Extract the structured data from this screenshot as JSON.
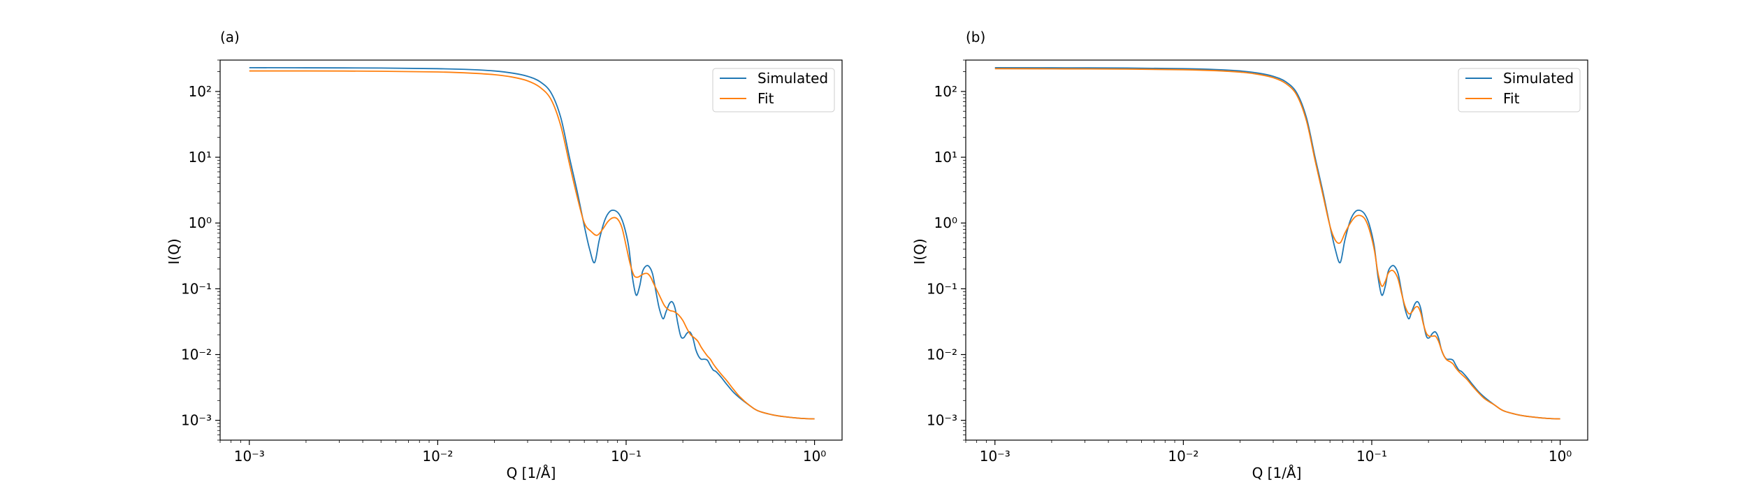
{
  "figure": {
    "panels": [
      {
        "label": "(a)",
        "xlabel": "Q [1/Å]",
        "ylabel": "I(Q)"
      },
      {
        "label": "(b)",
        "xlabel": "Q [1/Å]",
        "ylabel": "I(Q)"
      }
    ]
  },
  "chart_data": [
    {
      "type": "line",
      "panel": "(a)",
      "xlabel": "Q [1/Å]",
      "ylabel": "I(Q)",
      "xscale": "log",
      "yscale": "log",
      "xlim": [
        0.0007,
        1.4
      ],
      "ylim": [
        0.0005,
        300
      ],
      "xticks": [
        0.001,
        0.01,
        0.1,
        1
      ],
      "xtick_labels": [
        "10⁻³",
        "10⁻²",
        "10⁻¹",
        "10⁰"
      ],
      "yticks": [
        0.001,
        0.01,
        0.1,
        1,
        10,
        100
      ],
      "ytick_labels": [
        "10⁻³",
        "10⁻²",
        "10⁻¹",
        "10⁰",
        "10¹",
        "10²"
      ],
      "grid": false,
      "legend_position": "top-right",
      "series": [
        {
          "name": "Simulated",
          "color": "#1f77b4",
          "x": [
            0.001,
            0.002,
            0.005,
            0.01,
            0.015,
            0.02,
            0.025,
            0.03,
            0.035,
            0.04,
            0.045,
            0.05,
            0.055,
            0.06,
            0.064,
            0.068,
            0.072,
            0.077,
            0.082,
            0.087,
            0.092,
            0.097,
            0.103,
            0.108,
            0.113,
            0.118,
            0.122,
            0.127,
            0.132,
            0.138,
            0.144,
            0.15,
            0.157,
            0.163,
            0.17,
            0.176,
            0.182,
            0.188,
            0.195,
            0.202,
            0.21,
            0.218,
            0.226,
            0.234,
            0.242,
            0.25,
            0.26,
            0.27,
            0.28,
            0.29,
            0.3,
            0.32,
            0.34,
            0.37,
            0.4,
            0.45,
            0.5,
            0.6,
            0.7,
            0.85,
            1.0
          ],
          "y": [
            230,
            229,
            227,
            222,
            215,
            205,
            190,
            170,
            140,
            95,
            40,
            10,
            3.0,
            0.9,
            0.4,
            0.25,
            0.55,
            1.1,
            1.5,
            1.55,
            1.35,
            0.95,
            0.45,
            0.15,
            0.08,
            0.11,
            0.18,
            0.22,
            0.22,
            0.17,
            0.09,
            0.05,
            0.035,
            0.045,
            0.06,
            0.063,
            0.05,
            0.03,
            0.019,
            0.018,
            0.021,
            0.022,
            0.018,
            0.012,
            0.0095,
            0.0085,
            0.0085,
            0.0082,
            0.0068,
            0.0058,
            0.0055,
            0.0045,
            0.0036,
            0.0027,
            0.0022,
            0.0017,
            0.0014,
            0.00121,
            0.00113,
            0.00107,
            0.00105
          ]
        },
        {
          "name": "Fit",
          "color": "#ff7f0e",
          "x": [
            0.001,
            0.002,
            0.005,
            0.01,
            0.015,
            0.02,
            0.025,
            0.03,
            0.035,
            0.04,
            0.045,
            0.05,
            0.055,
            0.06,
            0.065,
            0.07,
            0.075,
            0.08,
            0.085,
            0.09,
            0.095,
            0.1,
            0.105,
            0.11,
            0.115,
            0.12,
            0.125,
            0.13,
            0.135,
            0.14,
            0.15,
            0.16,
            0.17,
            0.18,
            0.19,
            0.2,
            0.21,
            0.22,
            0.23,
            0.24,
            0.25,
            0.26,
            0.27,
            0.28,
            0.29,
            0.3,
            0.32,
            0.34,
            0.37,
            0.4,
            0.45,
            0.5,
            0.6,
            0.7,
            0.85,
            1.0
          ],
          "y": [
            205,
            205,
            203,
            198,
            190,
            180,
            165,
            145,
            115,
            75,
            30,
            8,
            2.5,
            1.0,
            0.75,
            0.65,
            0.8,
            1.05,
            1.2,
            1.15,
            0.85,
            0.45,
            0.24,
            0.16,
            0.15,
            0.16,
            0.17,
            0.17,
            0.15,
            0.12,
            0.08,
            0.055,
            0.047,
            0.045,
            0.04,
            0.033,
            0.025,
            0.02,
            0.018,
            0.016,
            0.013,
            0.011,
            0.0095,
            0.0085,
            0.0072,
            0.0063,
            0.005,
            0.0041,
            0.003,
            0.0023,
            0.0017,
            0.0014,
            0.00121,
            0.00113,
            0.00107,
            0.00105
          ]
        }
      ]
    },
    {
      "type": "line",
      "panel": "(b)",
      "xlabel": "Q [1/Å]",
      "ylabel": "I(Q)",
      "xscale": "log",
      "yscale": "log",
      "xlim": [
        0.0007,
        1.4
      ],
      "ylim": [
        0.0005,
        300
      ],
      "xticks": [
        0.001,
        0.01,
        0.1,
        1
      ],
      "xtick_labels": [
        "10⁻³",
        "10⁻²",
        "10⁻¹",
        "10⁰"
      ],
      "yticks": [
        0.001,
        0.01,
        0.1,
        1,
        10,
        100
      ],
      "ytick_labels": [
        "10⁻³",
        "10⁻²",
        "10⁻¹",
        "10⁰",
        "10¹",
        "10²"
      ],
      "grid": false,
      "legend_position": "top-right",
      "series": [
        {
          "name": "Simulated",
          "color": "#1f77b4",
          "x": [
            0.001,
            0.002,
            0.005,
            0.01,
            0.015,
            0.02,
            0.025,
            0.03,
            0.035,
            0.04,
            0.045,
            0.05,
            0.055,
            0.06,
            0.064,
            0.068,
            0.072,
            0.077,
            0.082,
            0.087,
            0.092,
            0.097,
            0.103,
            0.108,
            0.113,
            0.118,
            0.122,
            0.127,
            0.132,
            0.138,
            0.144,
            0.15,
            0.157,
            0.163,
            0.17,
            0.176,
            0.182,
            0.188,
            0.195,
            0.202,
            0.21,
            0.218,
            0.226,
            0.234,
            0.242,
            0.25,
            0.26,
            0.27,
            0.28,
            0.29,
            0.3,
            0.32,
            0.34,
            0.37,
            0.4,
            0.45,
            0.5,
            0.6,
            0.7,
            0.85,
            1.0
          ],
          "y": [
            230,
            229,
            227,
            222,
            215,
            205,
            190,
            170,
            140,
            95,
            40,
            10,
            3.0,
            0.9,
            0.4,
            0.25,
            0.55,
            1.1,
            1.5,
            1.55,
            1.35,
            0.95,
            0.45,
            0.15,
            0.08,
            0.11,
            0.18,
            0.22,
            0.22,
            0.17,
            0.09,
            0.05,
            0.035,
            0.045,
            0.06,
            0.063,
            0.05,
            0.03,
            0.019,
            0.018,
            0.021,
            0.022,
            0.018,
            0.012,
            0.0095,
            0.0085,
            0.0085,
            0.0082,
            0.0068,
            0.0058,
            0.0055,
            0.0045,
            0.0036,
            0.0027,
            0.0022,
            0.0017,
            0.0014,
            0.00121,
            0.00113,
            0.00107,
            0.00105
          ]
        },
        {
          "name": "Fit",
          "color": "#ff7f0e",
          "x": [
            0.001,
            0.002,
            0.005,
            0.01,
            0.015,
            0.02,
            0.025,
            0.03,
            0.035,
            0.04,
            0.045,
            0.05,
            0.055,
            0.06,
            0.064,
            0.068,
            0.072,
            0.077,
            0.082,
            0.087,
            0.092,
            0.097,
            0.103,
            0.108,
            0.113,
            0.118,
            0.122,
            0.127,
            0.132,
            0.138,
            0.144,
            0.15,
            0.157,
            0.163,
            0.17,
            0.176,
            0.182,
            0.188,
            0.195,
            0.202,
            0.21,
            0.218,
            0.226,
            0.234,
            0.242,
            0.25,
            0.26,
            0.27,
            0.28,
            0.29,
            0.3,
            0.32,
            0.34,
            0.37,
            0.4,
            0.45,
            0.5,
            0.6,
            0.7,
            0.85,
            1.0
          ],
          "y": [
            222,
            221,
            219,
            214,
            207,
            197,
            182,
            162,
            132,
            88,
            36,
            9,
            2.7,
            0.9,
            0.55,
            0.5,
            0.7,
            1.0,
            1.25,
            1.3,
            1.15,
            0.8,
            0.4,
            0.17,
            0.11,
            0.13,
            0.17,
            0.19,
            0.18,
            0.14,
            0.085,
            0.055,
            0.042,
            0.044,
            0.052,
            0.053,
            0.043,
            0.029,
            0.021,
            0.019,
            0.019,
            0.019,
            0.016,
            0.012,
            0.0095,
            0.0083,
            0.0078,
            0.0072,
            0.0062,
            0.0055,
            0.005,
            0.0042,
            0.0034,
            0.0026,
            0.0021,
            0.0017,
            0.0014,
            0.00121,
            0.00113,
            0.00107,
            0.00105
          ]
        }
      ]
    }
  ]
}
